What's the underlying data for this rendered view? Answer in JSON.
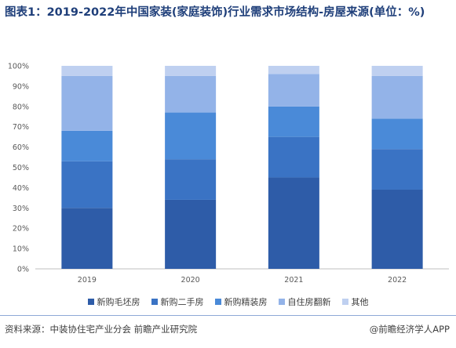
{
  "title": "图表1：2019-2022年中国家装(家庭装饰)行业需求市场结构-房屋来源(单位：%)",
  "source": "资料来源：中装协住宅产业分会 前瞻产业研究院",
  "brand": "@前瞻经济学人APP",
  "chart_data": {
    "type": "bar",
    "stacked": true,
    "categories": [
      "2019",
      "2020",
      "2021",
      "2022"
    ],
    "ylim": [
      0,
      100
    ],
    "yticks": [
      "0%",
      "10%",
      "20%",
      "30%",
      "40%",
      "50%",
      "60%",
      "70%",
      "80%",
      "90%",
      "100%"
    ],
    "series": [
      {
        "name": "新购毛坯房",
        "color": "#2e5ca8",
        "values": [
          30,
          34,
          45,
          39
        ]
      },
      {
        "name": "新购二手房",
        "color": "#3a73c4",
        "values": [
          23,
          20,
          20,
          20
        ]
      },
      {
        "name": "新购精装房",
        "color": "#4a8ad8",
        "values": [
          15,
          23,
          15,
          15
        ]
      },
      {
        "name": "自住房翻新",
        "color": "#93b3e8",
        "values": [
          27,
          18,
          16,
          21
        ]
      },
      {
        "name": "其他",
        "color": "#bfd0f0",
        "values": [
          5,
          5,
          4,
          5
        ]
      }
    ],
    "legend_position": "bottom",
    "grid": false
  }
}
